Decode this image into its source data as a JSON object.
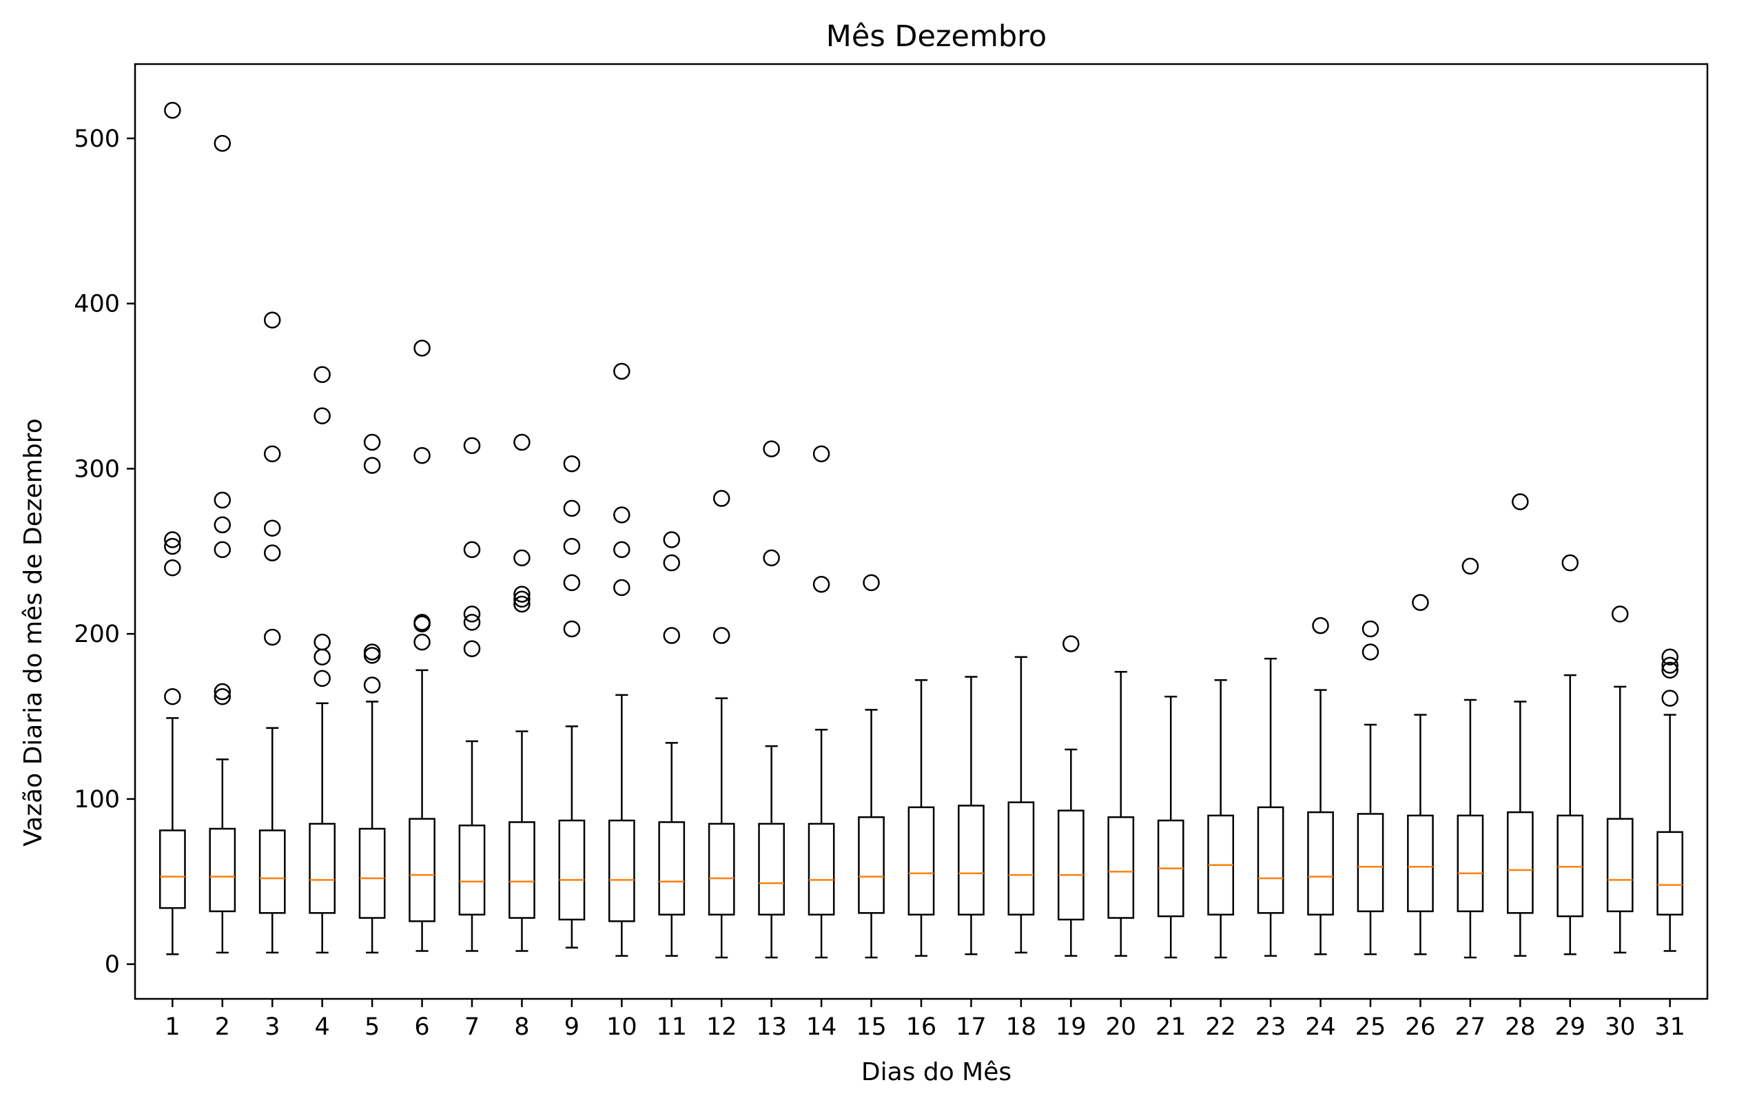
{
  "chart_data": {
    "type": "box",
    "title": "Mês Dezembro",
    "xlabel": "Dias do Mês",
    "ylabel": "Vazão Diaria do mês de Dezembro",
    "ylim": [
      -21,
      545
    ],
    "yticks": [
      0,
      100,
      200,
      300,
      400,
      500
    ],
    "grid": false,
    "legend": "none",
    "colors": {
      "box": "#000000",
      "median": "#ff7f0e",
      "flier": "#000000"
    },
    "categories": [
      "1",
      "2",
      "3",
      "4",
      "5",
      "6",
      "7",
      "8",
      "9",
      "10",
      "11",
      "12",
      "13",
      "14",
      "15",
      "16",
      "17",
      "18",
      "19",
      "20",
      "21",
      "22",
      "23",
      "24",
      "25",
      "26",
      "27",
      "28",
      "29",
      "30",
      "31"
    ],
    "boxes": [
      {
        "whislo": 6,
        "q1": 34,
        "med": 53,
        "q3": 81,
        "whishi": 149,
        "fliers": [
          517,
          257,
          253,
          240,
          162
        ]
      },
      {
        "whislo": 7,
        "q1": 32,
        "med": 53,
        "q3": 82,
        "whishi": 124,
        "fliers": [
          497,
          281,
          266,
          251,
          165,
          162
        ]
      },
      {
        "whislo": 7,
        "q1": 31,
        "med": 52,
        "q3": 81,
        "whishi": 143,
        "fliers": [
          390,
          309,
          264,
          249,
          198
        ]
      },
      {
        "whislo": 7,
        "q1": 31,
        "med": 51,
        "q3": 85,
        "whishi": 158,
        "fliers": [
          357,
          332,
          195,
          186,
          173
        ]
      },
      {
        "whislo": 7,
        "q1": 28,
        "med": 52,
        "q3": 82,
        "whishi": 159,
        "fliers": [
          316,
          302,
          189,
          187,
          169
        ]
      },
      {
        "whislo": 8,
        "q1": 26,
        "med": 54,
        "q3": 88,
        "whishi": 178,
        "fliers": [
          373,
          308,
          207,
          206,
          195
        ]
      },
      {
        "whislo": 8,
        "q1": 30,
        "med": 50,
        "q3": 84,
        "whishi": 135,
        "fliers": [
          314,
          251,
          212,
          207,
          191
        ]
      },
      {
        "whislo": 8,
        "q1": 28,
        "med": 50,
        "q3": 86,
        "whishi": 141,
        "fliers": [
          316,
          246,
          224,
          221,
          218
        ]
      },
      {
        "whislo": 10,
        "q1": 27,
        "med": 51,
        "q3": 87,
        "whishi": 144,
        "fliers": [
          303,
          276,
          253,
          231,
          203
        ]
      },
      {
        "whislo": 5,
        "q1": 26,
        "med": 51,
        "q3": 87,
        "whishi": 163,
        "fliers": [
          359,
          272,
          251,
          228
        ]
      },
      {
        "whislo": 5,
        "q1": 30,
        "med": 50,
        "q3": 86,
        "whishi": 134,
        "fliers": [
          257,
          243,
          199
        ]
      },
      {
        "whislo": 4,
        "q1": 30,
        "med": 52,
        "q3": 85,
        "whishi": 161,
        "fliers": [
          282,
          199
        ]
      },
      {
        "whislo": 4,
        "q1": 30,
        "med": 49,
        "q3": 85,
        "whishi": 132,
        "fliers": [
          312,
          246
        ]
      },
      {
        "whislo": 4,
        "q1": 30,
        "med": 51,
        "q3": 85,
        "whishi": 142,
        "fliers": [
          309,
          230
        ]
      },
      {
        "whislo": 4,
        "q1": 31,
        "med": 53,
        "q3": 89,
        "whishi": 154,
        "fliers": [
          231
        ]
      },
      {
        "whislo": 5,
        "q1": 30,
        "med": 55,
        "q3": 95,
        "whishi": 172,
        "fliers": []
      },
      {
        "whislo": 6,
        "q1": 30,
        "med": 55,
        "q3": 96,
        "whishi": 174,
        "fliers": []
      },
      {
        "whislo": 7,
        "q1": 30,
        "med": 54,
        "q3": 98,
        "whishi": 186,
        "fliers": []
      },
      {
        "whislo": 5,
        "q1": 27,
        "med": 54,
        "q3": 93,
        "whishi": 130,
        "fliers": [
          194
        ]
      },
      {
        "whislo": 5,
        "q1": 28,
        "med": 56,
        "q3": 89,
        "whishi": 177,
        "fliers": []
      },
      {
        "whislo": 4,
        "q1": 29,
        "med": 58,
        "q3": 87,
        "whishi": 162,
        "fliers": []
      },
      {
        "whislo": 4,
        "q1": 30,
        "med": 60,
        "q3": 90,
        "whishi": 172,
        "fliers": []
      },
      {
        "whislo": 5,
        "q1": 31,
        "med": 52,
        "q3": 95,
        "whishi": 185,
        "fliers": []
      },
      {
        "whislo": 6,
        "q1": 30,
        "med": 53,
        "q3": 92,
        "whishi": 166,
        "fliers": [
          205
        ]
      },
      {
        "whislo": 6,
        "q1": 32,
        "med": 59,
        "q3": 91,
        "whishi": 145,
        "fliers": [
          203,
          189
        ]
      },
      {
        "whislo": 6,
        "q1": 32,
        "med": 59,
        "q3": 90,
        "whishi": 151,
        "fliers": [
          219
        ]
      },
      {
        "whislo": 4,
        "q1": 32,
        "med": 55,
        "q3": 90,
        "whishi": 160,
        "fliers": [
          241
        ]
      },
      {
        "whislo": 5,
        "q1": 31,
        "med": 57,
        "q3": 92,
        "whishi": 159,
        "fliers": [
          280
        ]
      },
      {
        "whislo": 6,
        "q1": 29,
        "med": 59,
        "q3": 90,
        "whishi": 175,
        "fliers": [
          243
        ]
      },
      {
        "whislo": 7,
        "q1": 32,
        "med": 51,
        "q3": 88,
        "whishi": 168,
        "fliers": [
          212
        ]
      },
      {
        "whislo": 8,
        "q1": 30,
        "med": 48,
        "q3": 80,
        "whishi": 151,
        "fliers": [
          186,
          181,
          178,
          161
        ]
      }
    ]
  }
}
